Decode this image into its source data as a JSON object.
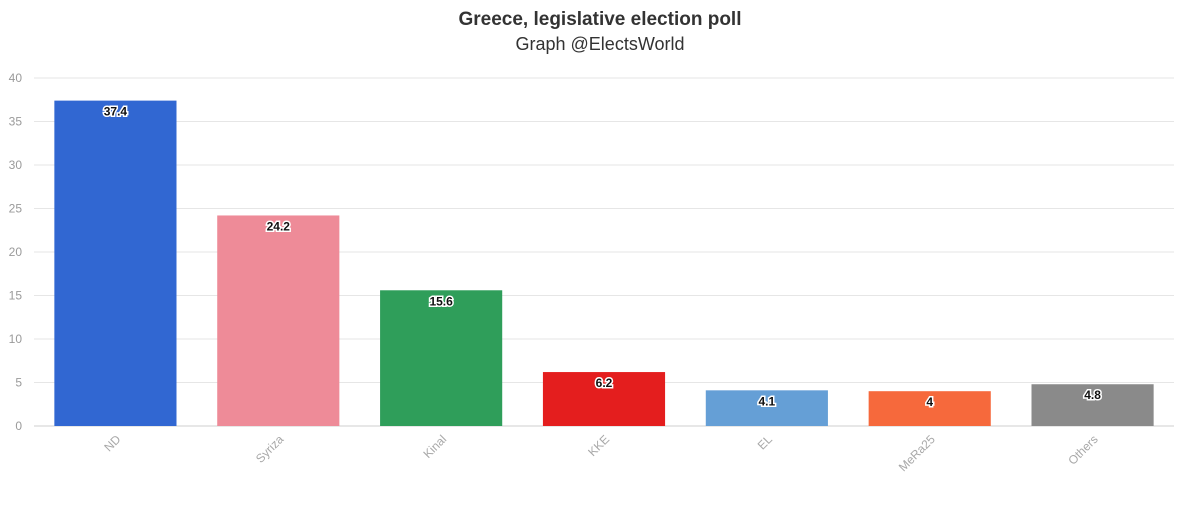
{
  "chart_data": {
    "type": "bar",
    "title": "Greece, legislative election poll",
    "subtitle": "Graph @ElectsWorld",
    "xlabel": "",
    "ylabel": "",
    "categories": [
      "ND",
      "Syriza",
      "Kinal",
      "KKE",
      "EL",
      "MeRa25",
      "Others"
    ],
    "values": [
      37.4,
      24.2,
      15.6,
      6.2,
      4.1,
      4,
      4.8
    ],
    "value_labels": [
      "37.4",
      "24.2",
      "15.6",
      "6.2",
      "4.1",
      "4",
      "4.8"
    ],
    "colors": [
      "#3167d2",
      "#ee8b98",
      "#2f9e5a",
      "#e41e1e",
      "#659fd6",
      "#f6693c",
      "#8a8a8a"
    ],
    "ylim": [
      0,
      40
    ],
    "yticks": [
      0,
      5,
      10,
      15,
      20,
      25,
      30,
      35,
      40
    ],
    "grid": true,
    "legend": "none"
  }
}
